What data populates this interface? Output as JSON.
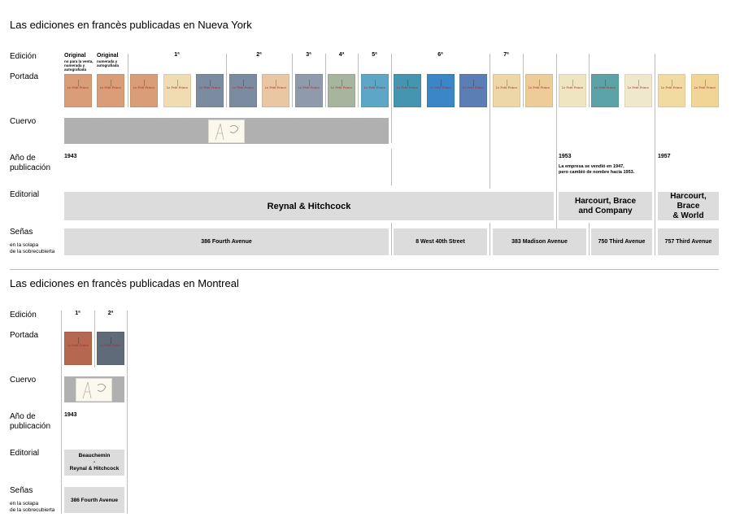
{
  "ny": {
    "title": "Las ediciones en francès publicadas en Nueva York",
    "labels": {
      "edicion": "Edición",
      "portada": "Portada",
      "cuervo": "Cuervo",
      "anio": "Año de\npublicación",
      "editorial": "Editorial",
      "senas": "Señas",
      "senas_sub": "en la solapa\nde la sobrecubierta"
    },
    "editions": {
      "original1": "Original",
      "original1_note": "no para la venta,\nnumerada y\nautografiada",
      "original2": "Original",
      "original2_note": "numerada y\nautografiada",
      "e1": "1ª",
      "e2": "2ª",
      "e3": "3ª",
      "e4": "4ª",
      "e5": "5ª",
      "e6": "6ª",
      "e7": "7ª"
    },
    "years": {
      "y1943": "1943",
      "y1953": "1953",
      "y1953_note": "La empresa se vendió en 1947,\npero cambió de nombre hacia 1953.",
      "y1957": "1957"
    },
    "publishers": {
      "reynal": "Reynal & Hitchcock",
      "harcourt_company": "Harcourt, Brace\nand Company",
      "harcourt_world": "Harcourt,\nBrace\n& World"
    },
    "addresses": {
      "a1": "386 Fourth Avenue",
      "a2": "8 West 40th Street",
      "a3": "383 Madison Avenue",
      "a4": "750 Third Avenue",
      "a5": "757 Third Avenue"
    },
    "covers": [
      {
        "color": "#d99e78",
        "title": "Le Petit Prince"
      },
      {
        "color": "#d99e78",
        "title": "Le Petit Prince"
      },
      {
        "color": "#d99e78",
        "title": "Le Petit Prince"
      },
      {
        "color": "#efdcb0",
        "title": "Le Petit Prince"
      },
      {
        "color": "#7b8ba0",
        "title": "Le Petit Prince"
      },
      {
        "color": "#7b8ba0",
        "title": "Le Petit Prince"
      },
      {
        "color": "#e9c7a4",
        "title": "Le Petit Prince"
      },
      {
        "color": "#8f9bad",
        "title": "Le Petit Prince"
      },
      {
        "color": "#a7b59f",
        "title": "Le Petit Prince"
      },
      {
        "color": "#5ea6c7",
        "title": "Le Petit Prince"
      },
      {
        "color": "#4595b0",
        "title": "Le Petit Prince"
      },
      {
        "color": "#3b86c6",
        "title": "Le Petit Prince"
      },
      {
        "color": "#5b7fb4",
        "title": "Le Petit Prince"
      },
      {
        "color": "#edd7a8",
        "title": "Le Petit Prince"
      },
      {
        "color": "#edcc97",
        "title": "Le Petit Prince"
      },
      {
        "color": "#efe5c0",
        "title": "Le Petit Prince"
      },
      {
        "color": "#5ca3a8",
        "title": "Le Petit Prince"
      },
      {
        "color": "#f0e8cc",
        "title": "Le Petit Prince"
      },
      {
        "color": "#f2dba3",
        "title": "Le Petit Prince"
      },
      {
        "color": "#f0d596",
        "title": "Le Petit Prince"
      }
    ]
  },
  "mtl": {
    "title": "Las ediciones en francès publicadas en Montreal",
    "labels": {
      "edicion": "Edición",
      "portada": "Portada",
      "cuervo": "Cuervo",
      "anio": "Año de\npublicación",
      "editorial": "Editorial",
      "senas": "Señas",
      "senas_sub": "en la solapa\nde la sobrecubierta"
    },
    "editions": {
      "e1": "1ª",
      "e2": "2ª"
    },
    "years": {
      "y1943": "1943"
    },
    "publishers": {
      "beauchemin": "Beauchemin\n-\nReynal & Hitchcock"
    },
    "addresses": {
      "a1": "386 Fourth Avenue"
    },
    "covers": [
      {
        "color": "#b5674f",
        "title": "Le Petit Prince"
      },
      {
        "color": "#5f6b78",
        "title": "Le Petit Prince"
      }
    ]
  }
}
